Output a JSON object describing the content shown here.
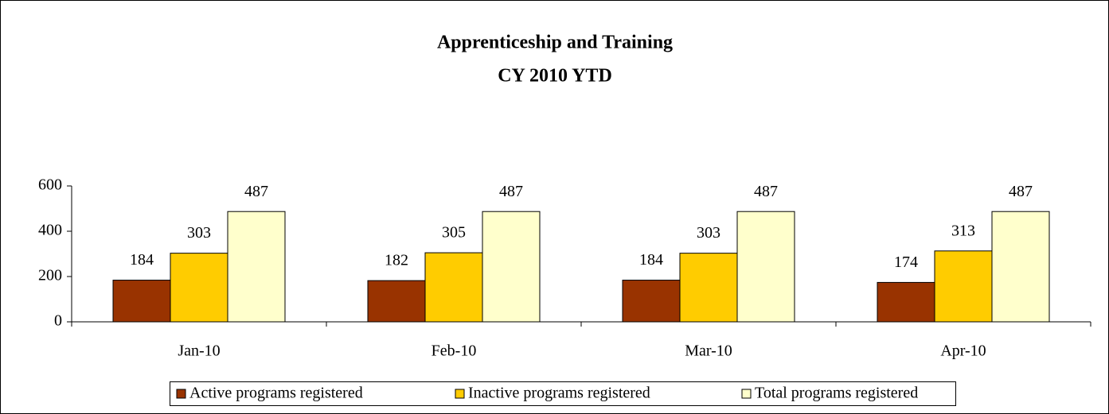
{
  "chart_data": {
    "type": "bar",
    "title": "Apprenticeship and Training",
    "subtitle": "CY 2010 YTD",
    "categories": [
      "Jan-10",
      "Feb-10",
      "Mar-10",
      "Apr-10"
    ],
    "series": [
      {
        "name": "Active programs registered",
        "color": "#993300",
        "values": [
          184,
          182,
          184,
          174
        ]
      },
      {
        "name": "Inactive programs registered",
        "color": "#FFCC00",
        "values": [
          303,
          305,
          303,
          313
        ]
      },
      {
        "name": "Total programs registered",
        "color": "#FFFFCC",
        "values": [
          487,
          487,
          487,
          487
        ]
      }
    ],
    "ylim": [
      0,
      600
    ],
    "yticks": [
      0,
      200,
      400,
      600
    ],
    "grid": false,
    "legend": "bottom"
  }
}
